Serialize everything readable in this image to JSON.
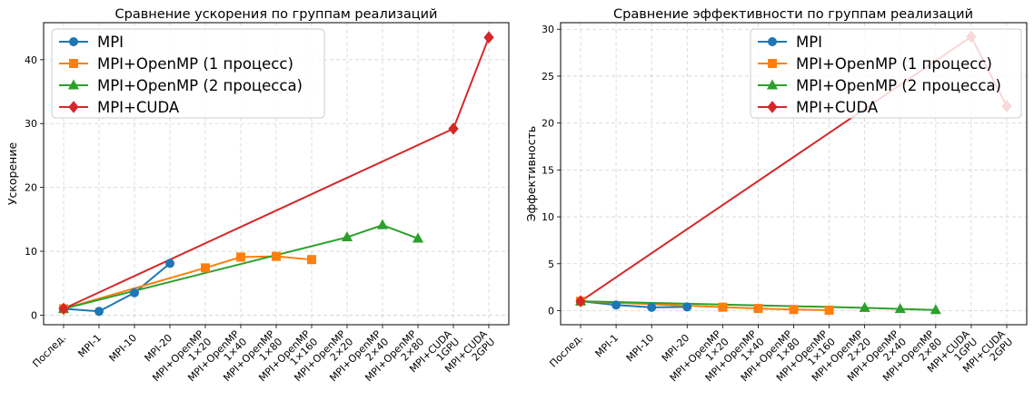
{
  "categories": [
    "Послед.",
    "MPI-1",
    "MPI-10",
    "MPI-20",
    "MPI+OpenMP\n1×20",
    "MPI+OpenMP\n1×40",
    "MPI+OpenMP\n1×80",
    "MPI+OpenMP\n1×160",
    "MPI+OpenMP\n2×20",
    "MPI+OpenMP\n2×40",
    "MPI+OpenMP\n2×80",
    "MPI+CUDA\n1GPU",
    "MPI+CUDA\n2GPU"
  ],
  "colors": {
    "MPI": "#1f77b4",
    "OMP1": "#ff7f0e",
    "OMP2": "#2ca02c",
    "CUDA": "#d62728"
  },
  "chart_data": [
    {
      "type": "line",
      "title": "Сравнение ускорения по группам реализаций",
      "xlabel": "",
      "ylabel": "Ускорение",
      "ylim": [
        -1.5,
        45.8
      ],
      "yticks": [
        0,
        10,
        20,
        30,
        40
      ],
      "grid": true,
      "legend": "upper-left",
      "series": [
        {
          "name": "MPI",
          "marker": "circle",
          "color": "#1f77b4",
          "points": [
            [
              0,
              1.0
            ],
            [
              1,
              0.6
            ],
            [
              2,
              3.5
            ],
            [
              3,
              8.1
            ]
          ]
        },
        {
          "name": "MPI+OpenMP (1 процесс)",
          "marker": "square",
          "color": "#ff7f0e",
          "points": [
            [
              0,
              1.0
            ],
            [
              4,
              7.4
            ],
            [
              5,
              9.1
            ],
            [
              6,
              9.2
            ],
            [
              7,
              8.7
            ]
          ]
        },
        {
          "name": "MPI+OpenMP (2 процесса)",
          "marker": "triangle",
          "color": "#2ca02c",
          "points": [
            [
              0,
              1.0
            ],
            [
              8,
              12.2
            ],
            [
              9,
              14.1
            ],
            [
              10,
              12.0
            ]
          ]
        },
        {
          "name": "MPI+CUDA",
          "marker": "diamond",
          "color": "#d62728",
          "points": [
            [
              0,
              1.0
            ],
            [
              11,
              29.2
            ],
            [
              12,
              43.5
            ]
          ]
        }
      ]
    },
    {
      "type": "line",
      "title": "Сравнение эффективности по группам реализаций",
      "xlabel": "",
      "ylabel": "Эффективность",
      "ylim": [
        -1.5,
        30.7
      ],
      "yticks": [
        0,
        5,
        10,
        15,
        20,
        25,
        30
      ],
      "grid": true,
      "legend": "upper-right",
      "series": [
        {
          "name": "MPI",
          "marker": "circle",
          "color": "#1f77b4",
          "points": [
            [
              0,
              1.0
            ],
            [
              1,
              0.6
            ],
            [
              2,
              0.35
            ],
            [
              3,
              0.4
            ]
          ]
        },
        {
          "name": "MPI+OpenMP (1 процесс)",
          "marker": "square",
          "color": "#ff7f0e",
          "points": [
            [
              0,
              1.0
            ],
            [
              4,
              0.37
            ],
            [
              5,
              0.23
            ],
            [
              6,
              0.12
            ],
            [
              7,
              0.05
            ]
          ]
        },
        {
          "name": "MPI+OpenMP (2 процесса)",
          "marker": "triangle",
          "color": "#2ca02c",
          "points": [
            [
              0,
              1.0
            ],
            [
              8,
              0.3
            ],
            [
              9,
              0.18
            ],
            [
              10,
              0.07
            ]
          ]
        },
        {
          "name": "MPI+CUDA",
          "marker": "diamond",
          "color": "#d62728",
          "points": [
            [
              0,
              1.0
            ],
            [
              11,
              29.2
            ],
            [
              12,
              21.8
            ]
          ]
        }
      ]
    }
  ]
}
